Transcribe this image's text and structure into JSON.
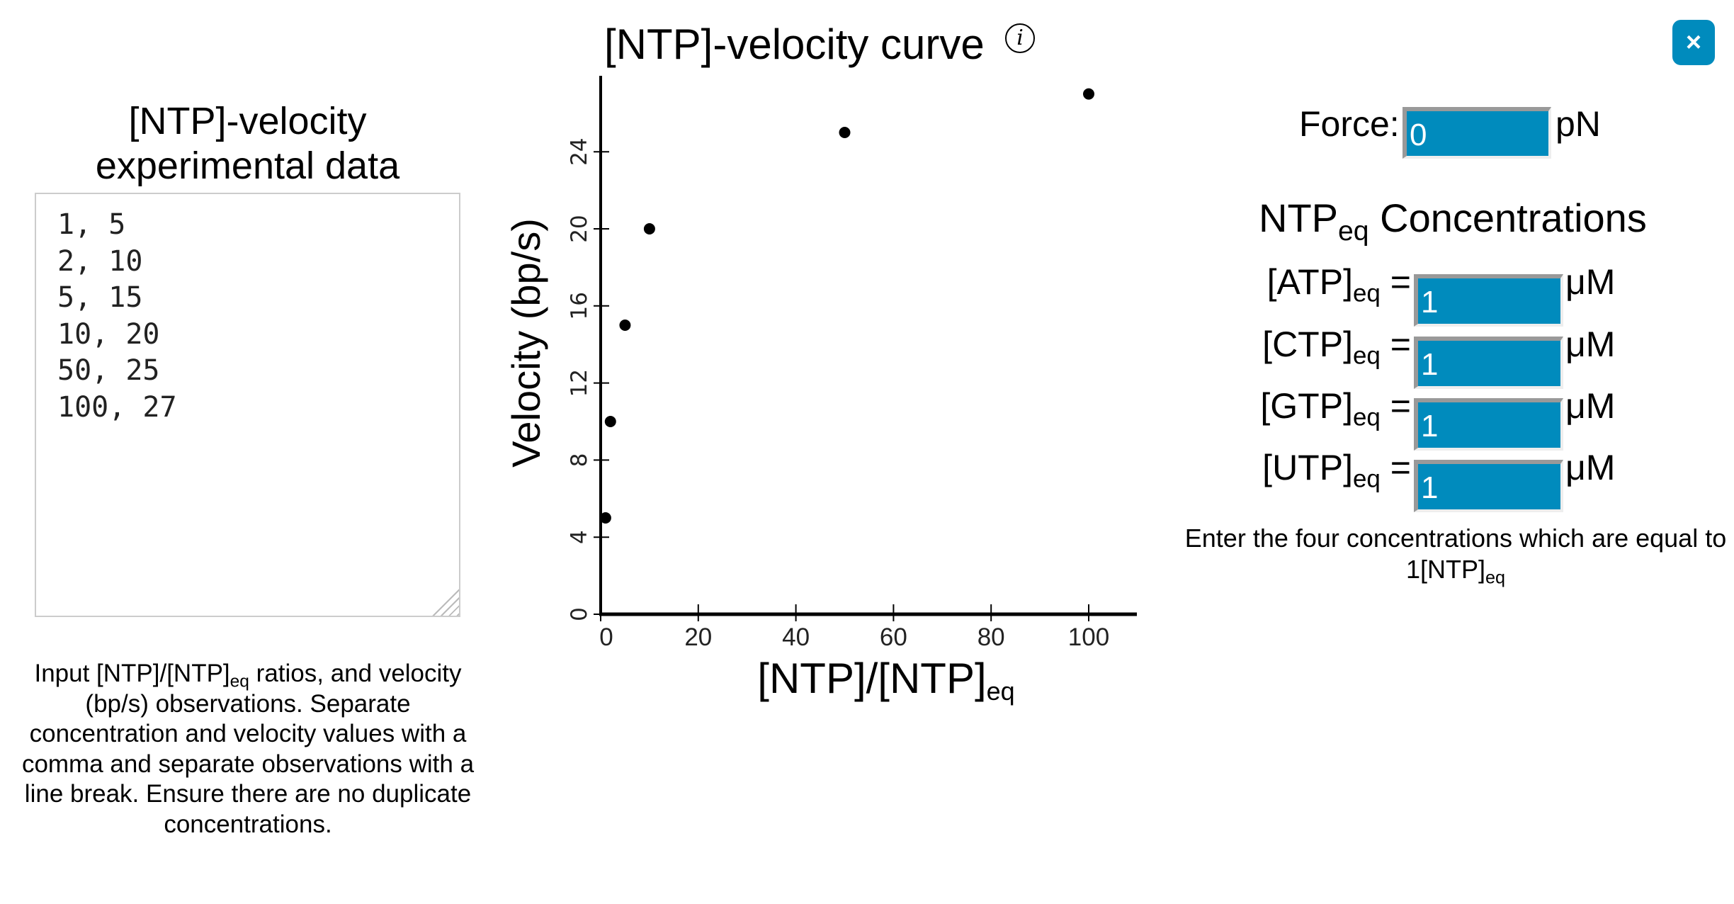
{
  "left_panel": {
    "title_line1": "[NTP]-velocity",
    "title_line2": "experimental data",
    "data_text": "1, 5\n2, 10\n5, 15\n10, 20\n50, 25\n100, 27",
    "instructions": {
      "p1": "Input [NTP]/[NTP]",
      "sub1": "eq",
      "p2": " ratios, and velocity (bp/s) observations. Separate concentration and velocity values with a comma and separate observations with a line break. Ensure there are no duplicate concentrations."
    }
  },
  "chart_header": {
    "title": "[NTP]-velocity curve",
    "info_icon": "i"
  },
  "chart_data": {
    "type": "scatter",
    "title": "[NTP]-velocity curve",
    "xlabel_main": "[NTP]/[NTP]",
    "xlabel_sub": "eq",
    "ylabel": "Velocity (bp/s)",
    "x": [
      1,
      2,
      5,
      10,
      50,
      100
    ],
    "y": [
      5,
      10,
      15,
      20,
      25,
      27
    ],
    "xticks": [
      0,
      20,
      40,
      60,
      80,
      100
    ],
    "yticks": [
      0,
      4,
      8,
      12,
      16,
      20,
      24
    ],
    "xlim": [
      0,
      110
    ],
    "ylim": [
      0,
      28
    ],
    "grid": false
  },
  "right_panel": {
    "close_label": "×",
    "force": {
      "label": "Force:",
      "value": "0",
      "unit": "pN"
    },
    "heading": {
      "main": "NTP",
      "sub": "eq",
      "rest": " Concentrations"
    },
    "concentrations": [
      {
        "name": "[ATP]",
        "sub": "eq",
        "eq": " =",
        "value": "1",
        "unit": "μM"
      },
      {
        "name": "[CTP]",
        "sub": "eq",
        "eq": " =",
        "value": "1",
        "unit": "μM"
      },
      {
        "name": "[GTP]",
        "sub": "eq",
        "eq": " =",
        "value": "1",
        "unit": "μM"
      },
      {
        "name": "[UTP]",
        "sub": "eq",
        "eq": " =",
        "value": "1",
        "unit": "μM"
      }
    ],
    "note": {
      "p1": "Enter the four concentrations which are equal to 1[NTP]",
      "sub": "eq"
    }
  },
  "colors": {
    "accent": "#008bbd"
  }
}
